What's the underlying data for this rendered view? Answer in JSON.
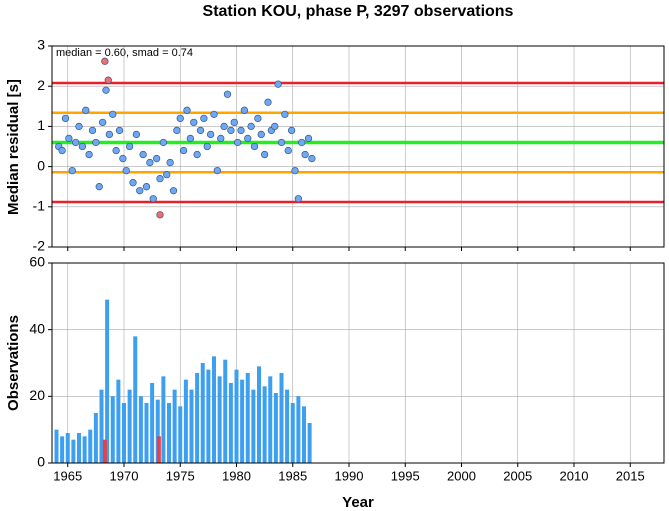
{
  "chart_data": [
    {
      "type": "scatter",
      "title": "Station KOU, phase P, 3297 observations",
      "ylabel": "Median residual [s]",
      "annotation": "median = 0.60, smad = 0.74",
      "xlim": [
        1963.6,
        2018
      ],
      "xticks": [
        1965,
        1970,
        1975,
        1980,
        1985,
        1990,
        1995,
        2000,
        2005,
        2010,
        2015
      ],
      "ylim": [
        -2,
        3
      ],
      "yticks": [
        -2,
        -1,
        0,
        1,
        2,
        3
      ],
      "grid": true,
      "hlines": [
        {
          "value": 2.08,
          "color": "#e8202a"
        },
        {
          "value": 1.34,
          "color": "#ffa500"
        },
        {
          "value": 0.6,
          "color": "#22ee22"
        },
        {
          "value": -0.14,
          "color": "#ffa500"
        },
        {
          "value": -0.88,
          "color": "#e8202a"
        }
      ],
      "series": [
        {
          "color": "#6ea8f5",
          "x": [
            1964.2,
            1964.5,
            1964.8,
            1965.1,
            1965.4,
            1965.7,
            1966.0,
            1966.3,
            1966.6,
            1966.9,
            1967.2,
            1967.5,
            1967.8,
            1968.1,
            1968.4,
            1968.7,
            1969.0,
            1969.3,
            1969.6,
            1969.9,
            1970.2,
            1970.5,
            1970.8,
            1971.1,
            1971.4,
            1971.7,
            1972.0,
            1972.3,
            1972.6,
            1972.9,
            1973.2,
            1973.5,
            1973.8,
            1974.1,
            1974.4,
            1974.7,
            1975.0,
            1975.3,
            1975.6,
            1975.9,
            1976.2,
            1976.5,
            1976.8,
            1977.1,
            1977.4,
            1977.7,
            1978.0,
            1978.3,
            1978.6,
            1978.9,
            1979.2,
            1979.5,
            1979.8,
            1980.1,
            1980.4,
            1980.7,
            1981.0,
            1981.3,
            1981.6,
            1981.9,
            1982.2,
            1982.5,
            1982.8,
            1983.1,
            1983.4,
            1983.7,
            1984.0,
            1984.3,
            1984.6,
            1984.9,
            1985.2,
            1985.5,
            1985.8,
            1986.1,
            1986.4,
            1986.7
          ],
          "values": [
            0.5,
            0.4,
            1.2,
            0.7,
            -0.1,
            0.6,
            1.0,
            0.5,
            1.4,
            0.3,
            0.9,
            0.6,
            -0.5,
            1.1,
            1.9,
            0.8,
            1.3,
            0.4,
            0.9,
            0.2,
            -0.1,
            0.5,
            -0.4,
            0.8,
            -0.6,
            0.3,
            -0.5,
            0.1,
            -0.8,
            0.2,
            -0.3,
            0.6,
            -0.2,
            0.1,
            -0.6,
            0.9,
            1.2,
            0.4,
            1.4,
            0.7,
            1.1,
            0.3,
            0.9,
            1.2,
            0.5,
            0.8,
            1.3,
            -0.1,
            0.7,
            1.0,
            1.8,
            0.9,
            1.1,
            0.6,
            0.9,
            1.4,
            0.7,
            1.0,
            0.5,
            1.2,
            0.8,
            0.3,
            1.6,
            0.9,
            1.0,
            2.05,
            0.6,
            1.3,
            0.4,
            0.9,
            -0.1,
            -0.8,
            0.6,
            0.3,
            0.7,
            0.2
          ]
        },
        {
          "color": "#f26d6d",
          "x": [
            1968.3,
            1968.6,
            1973.2
          ],
          "values": [
            2.62,
            2.15,
            -1.2
          ]
        }
      ]
    },
    {
      "type": "bar",
      "ylabel": "Observations",
      "xlabel": "Year",
      "xlim": [
        1963.6,
        2018
      ],
      "xticks": [
        1965,
        1970,
        1975,
        1980,
        1985,
        1990,
        1995,
        2000,
        2005,
        2010,
        2015
      ],
      "ylim": [
        0,
        60
      ],
      "yticks": [
        0,
        20,
        40,
        60
      ],
      "grid": true,
      "series": [
        {
          "color": "#3d9ff0",
          "x": [
            1964,
            1964.5,
            1965,
            1965.5,
            1966,
            1966.5,
            1967,
            1967.5,
            1968,
            1968.5,
            1969,
            1969.5,
            1970,
            1970.5,
            1971,
            1971.5,
            1972,
            1972.5,
            1973,
            1973.5,
            1974,
            1974.5,
            1975,
            1975.5,
            1976,
            1976.5,
            1977,
            1977.5,
            1978,
            1978.5,
            1979,
            1979.5,
            1980,
            1980.5,
            1981,
            1981.5,
            1982,
            1982.5,
            1983,
            1983.5,
            1984,
            1984.5,
            1985,
            1985.5,
            1986,
            1986.5
          ],
          "values": [
            10,
            8,
            9,
            7,
            9,
            8,
            10,
            15,
            22,
            49,
            20,
            25,
            18,
            22,
            38,
            20,
            18,
            24,
            19,
            26,
            18,
            22,
            17,
            25,
            22,
            27,
            30,
            28,
            32,
            26,
            31,
            24,
            28,
            25,
            27,
            22,
            29,
            23,
            26,
            21,
            27,
            22,
            18,
            20,
            17,
            12
          ]
        },
        {
          "color": "#e8404a",
          "x": [
            1968.3,
            1973.1
          ],
          "values": [
            7,
            8
          ]
        }
      ]
    }
  ]
}
